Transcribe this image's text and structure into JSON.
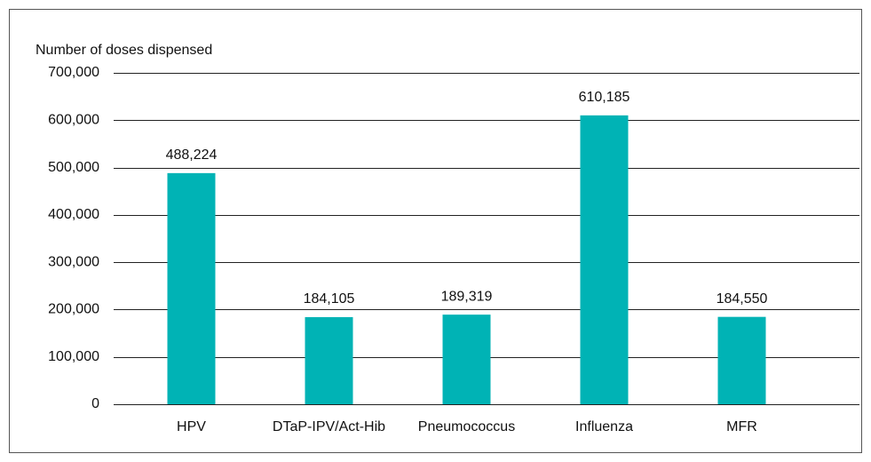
{
  "chart_data": {
    "type": "bar",
    "y_label": "Number of doses dispensed",
    "categories": [
      "HPV",
      "DTaP-IPV/Act-Hib",
      "Pneumococcus",
      "Influenza",
      "MFR"
    ],
    "values": [
      488224,
      184105,
      189319,
      610185,
      184550
    ],
    "value_labels": [
      "488,224",
      "184,105",
      "189,319",
      "610,185",
      "184,550"
    ],
    "color": "#00b3b5",
    "ylim": [
      0,
      700000
    ],
    "yticks": [
      0,
      {
        "value": 100000,
        "label": "100,000"
      },
      {
        "value": 200000,
        "label": "200,000"
      },
      {
        "value": 300000,
        "label": "300,000"
      },
      {
        "value": 400000,
        "label": "400,000"
      },
      {
        "value": 500000,
        "label": "500,000"
      },
      {
        "value": 600000,
        "label": "600,000"
      },
      {
        "value": 700000,
        "label": "700,000"
      }
    ],
    "grid": true
  }
}
